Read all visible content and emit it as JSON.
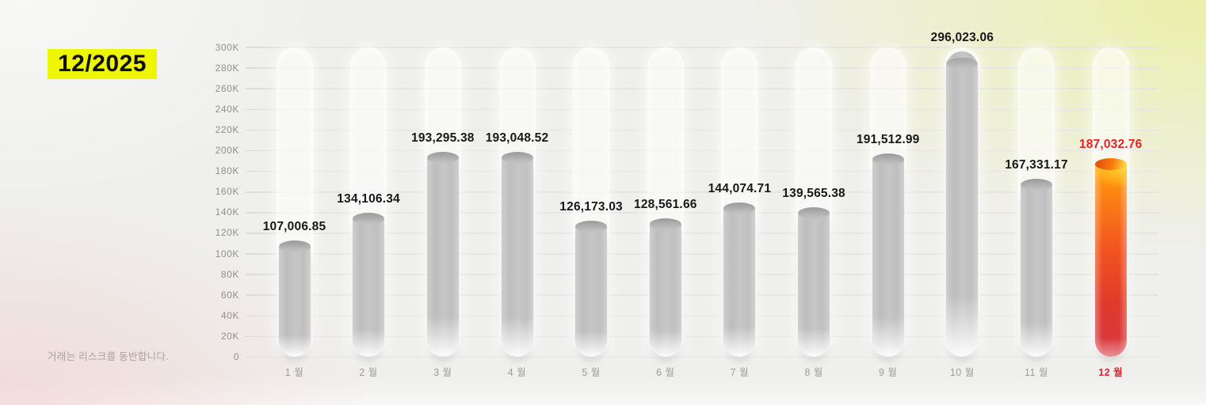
{
  "badge": {
    "label": "12/2025"
  },
  "disclaimer": "거래는 리스크를 동반합니다.",
  "colors": {
    "badge_bg": "#eef602",
    "badge_text": "#101010",
    "value_label": "#17181a",
    "highlight_red": "#e81e26",
    "bar_gray": "#c3c3c3",
    "bar_highlight_top": "#ffa304",
    "bar_highlight_bottom": "#d63743",
    "axis_text": "#8f8f90",
    "gridline": "#e0dfdd",
    "background_tints": [
      "#f1f3c2",
      "#f2dcda",
      "#efefed"
    ]
  },
  "chart_data": {
    "type": "bar",
    "title": "12/2025",
    "categories": [
      "1 월",
      "2 월",
      "3 월",
      "4 월",
      "5 월",
      "6 월",
      "7 월",
      "8 월",
      "9 월",
      "10 월",
      "11 월",
      "12 월"
    ],
    "values": [
      107006.85,
      134106.34,
      193295.38,
      193048.52,
      126173.03,
      128561.66,
      144074.71,
      139565.38,
      191512.99,
      296023.06,
      167331.17,
      187032.76
    ],
    "value_labels": [
      "107,006.85",
      "134,106.34",
      "193,295.38",
      "193,048.52",
      "126,173.03",
      "128,561.66",
      "144,074.71",
      "139,565.38",
      "191,512.99",
      "296,023.06",
      "167,331.17",
      "187,032.76"
    ],
    "highlight_index": 11,
    "xlabel": "",
    "ylabel": "",
    "ylim": [
      0,
      300000
    ],
    "ytick_step": 20000,
    "ytick_labels": [
      "0",
      "20K",
      "40K",
      "60K",
      "80K",
      "100K",
      "120K",
      "140K",
      "160K",
      "180K",
      "200K",
      "220K",
      "240K",
      "260K",
      "280K",
      "300K"
    ],
    "grid": true,
    "legend": false
  }
}
